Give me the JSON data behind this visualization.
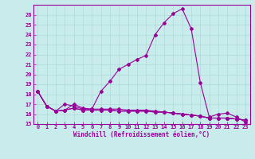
{
  "xlabel": "Windchill (Refroidissement éolien,°C)",
  "background_color": "#c8ecec",
  "grid_color": "#b0d8d8",
  "line_color": "#990099",
  "xlim": [
    -0.5,
    23.5
  ],
  "ylim": [
    15,
    27
  ],
  "yticks": [
    15,
    16,
    17,
    18,
    19,
    20,
    21,
    22,
    23,
    24,
    25,
    26
  ],
  "xticks": [
    0,
    1,
    2,
    3,
    4,
    5,
    6,
    7,
    8,
    9,
    10,
    11,
    12,
    13,
    14,
    15,
    16,
    17,
    18,
    19,
    20,
    21,
    22,
    23
  ],
  "series": [
    [
      18.3,
      16.8,
      16.3,
      16.4,
      16.6,
      16.4,
      16.4,
      16.4,
      16.4,
      16.3,
      16.3,
      16.3,
      16.3,
      16.2,
      16.2,
      16.1,
      16.0,
      15.9,
      15.8,
      15.6,
      15.6,
      15.6,
      15.5,
      15.4
    ],
    [
      18.3,
      16.8,
      16.3,
      17.0,
      16.8,
      16.5,
      16.5,
      18.3,
      19.3,
      20.5,
      21.0,
      21.5,
      21.9,
      24.0,
      25.2,
      26.1,
      26.6,
      24.6,
      19.2,
      15.7,
      16.0,
      16.1,
      15.7,
      15.2
    ],
    [
      18.3,
      16.8,
      16.3,
      16.4,
      16.6,
      16.4,
      16.4,
      16.4,
      16.4,
      16.3,
      16.3,
      16.3,
      16.3,
      16.2,
      16.2,
      16.1,
      16.0,
      15.9,
      15.8,
      15.6,
      15.6,
      15.6,
      15.5,
      15.4
    ],
    [
      18.3,
      16.8,
      16.3,
      16.4,
      17.0,
      16.6,
      16.5,
      16.5,
      16.5,
      16.5,
      16.4,
      16.4,
      16.4,
      16.3,
      16.2,
      16.1,
      16.0,
      15.9,
      15.8,
      15.6,
      15.6,
      15.6,
      15.5,
      15.4
    ]
  ]
}
